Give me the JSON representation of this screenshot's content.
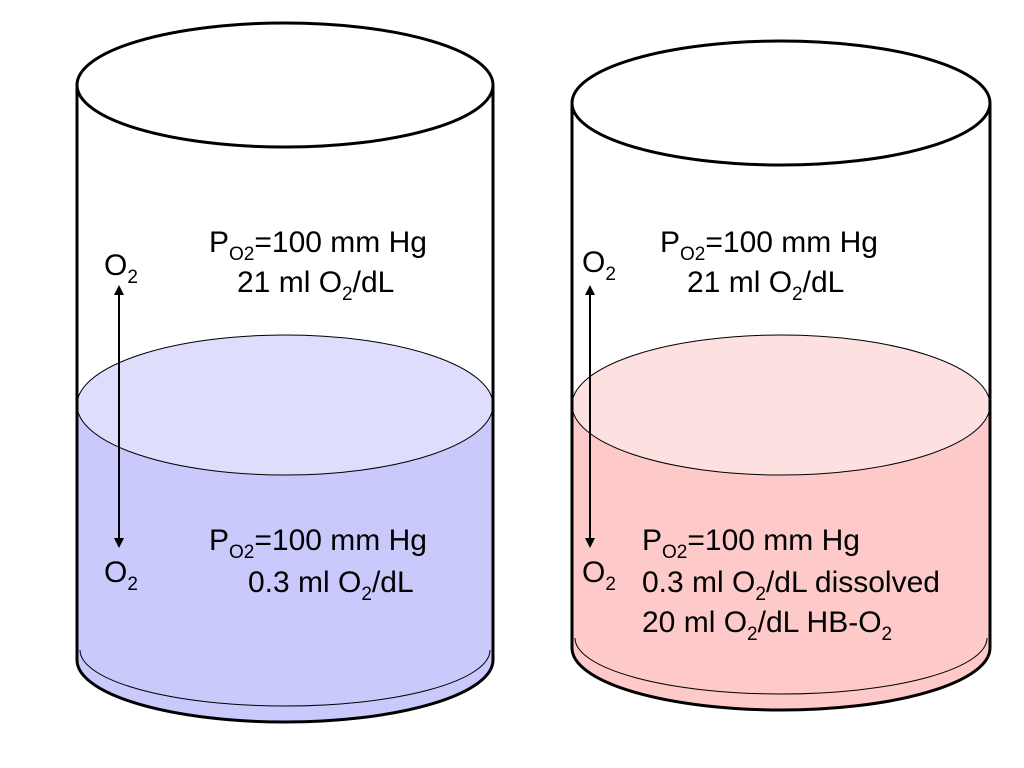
{
  "left_cylinder": {
    "liquid_color": "#c9c9fc",
    "liquid_surface_color": "#dedefc",
    "gas": {
      "pressure_lead": "P",
      "pressure_sub": "O2",
      "pressure_tail": "=100 mm Hg",
      "content_lead": "21 ml O",
      "content_sub": "2",
      "content_tail": "/dL"
    },
    "liquid": {
      "pressure_lead": "P",
      "pressure_sub": "O2",
      "pressure_tail": "=100 mm Hg",
      "content_lead": "0.3 ml O",
      "content_sub": "2",
      "content_tail": "/dL"
    },
    "arrow_top": {
      "lead": "O",
      "sub": "2"
    },
    "arrow_bottom": {
      "lead": "O",
      "sub": "2"
    }
  },
  "right_cylinder": {
    "liquid_color": "#fdc9c9",
    "liquid_surface_color": "#fde0e0",
    "gas": {
      "pressure_lead": "P",
      "pressure_sub": "O2",
      "pressure_tail": "=100 mm Hg",
      "content_lead": "21 ml O",
      "content_sub": "2",
      "content_tail": "/dL"
    },
    "liquid": {
      "pressure_lead": "P",
      "pressure_sub": "O2",
      "pressure_tail": "=100 mm Hg",
      "dissolved_lead": "0.3 ml O",
      "dissolved_sub": "2",
      "dissolved_tail": "/dL dissolved",
      "bound_lead": "20 ml O",
      "bound_sub": "2",
      "bound_mid": "/dL HB-O",
      "bound_sub2": "2"
    },
    "arrow_top": {
      "lead": "O",
      "sub": "2"
    },
    "arrow_bottom": {
      "lead": "O",
      "sub": "2"
    }
  }
}
